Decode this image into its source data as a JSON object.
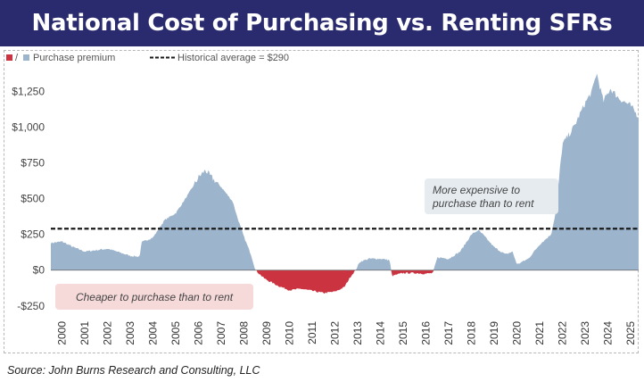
{
  "title": "National Cost of Purchasing vs. Renting SFRs",
  "source": "Source: John Burns Research and Consulting, LLC",
  "chart_data": {
    "type": "area",
    "title": "National Cost of Purchasing vs. Renting SFRs",
    "legend": {
      "placement": "top-left",
      "series_label": "Purchase premium",
      "swatch_separator": "/",
      "reference_label": "Historical average = $290"
    },
    "y_ticks": [
      {
        "value": 1250,
        "label": "$1,250"
      },
      {
        "value": 1000,
        "label": "$1,000"
      },
      {
        "value": 750,
        "label": "$750"
      },
      {
        "value": 500,
        "label": "$500"
      },
      {
        "value": 250,
        "label": "$250"
      },
      {
        "value": 0,
        "label": "$0"
      },
      {
        "value": -250,
        "label": "-$250"
      }
    ],
    "ylim": [
      -320,
      1440
    ],
    "xlim": [
      2000,
      2025.85
    ],
    "x_tick_labels": [
      "2000",
      "2001",
      "2002",
      "2003",
      "2004",
      "2005",
      "2006",
      "2007",
      "2008",
      "2009",
      "2010",
      "2011",
      "2012",
      "2013",
      "2014",
      "2015",
      "2016",
      "2017",
      "2018",
      "2019",
      "2020",
      "2021",
      "2022",
      "2023",
      "2024",
      "2025"
    ],
    "reference_line": {
      "value": 290,
      "label": "Historical average = $290"
    },
    "annotations": [
      {
        "text": "Cheaper to purchase than to rent",
        "tone": "negative"
      },
      {
        "text_lines": [
          "More expensive to",
          "purchase than to rent"
        ],
        "tone": "positive"
      }
    ],
    "colors": {
      "positive": "#9cb4cc",
      "negative": "#cc3340",
      "reference": "#1a1a1a",
      "negative_box": "#f6d9d9",
      "positive_box": "#e6ebf0"
    },
    "series": [
      {
        "name": "Purchase premium",
        "points": [
          [
            2000.0,
            190
          ],
          [
            2000.5,
            200
          ],
          [
            2001.0,
            160
          ],
          [
            2001.5,
            130
          ],
          [
            2002.0,
            140
          ],
          [
            2002.5,
            150
          ],
          [
            2003.0,
            125
          ],
          [
            2003.5,
            100
          ],
          [
            2003.9,
            95
          ],
          [
            2004.0,
            195
          ],
          [
            2004.5,
            230
          ],
          [
            2005.0,
            350
          ],
          [
            2005.5,
            400
          ],
          [
            2006.0,
            520
          ],
          [
            2006.5,
            650
          ],
          [
            2006.8,
            700
          ],
          [
            2007.0,
            660
          ],
          [
            2007.5,
            580
          ],
          [
            2008.0,
            480
          ],
          [
            2008.2,
            370
          ],
          [
            2008.5,
            230
          ],
          [
            2008.8,
            110
          ],
          [
            2009.0,
            0
          ],
          [
            2009.4,
            -60
          ],
          [
            2010.0,
            -110
          ],
          [
            2010.5,
            -140
          ],
          [
            2011.0,
            -130
          ],
          [
            2011.5,
            -145
          ],
          [
            2012.0,
            -160
          ],
          [
            2012.5,
            -150
          ],
          [
            2012.9,
            -120
          ],
          [
            2013.2,
            -40
          ],
          [
            2013.4,
            0
          ],
          [
            2013.6,
            60
          ],
          [
            2014.0,
            80
          ],
          [
            2014.5,
            80
          ],
          [
            2014.9,
            70
          ],
          [
            2015.0,
            -40
          ],
          [
            2015.5,
            -20
          ],
          [
            2016.0,
            -20
          ],
          [
            2016.5,
            -25
          ],
          [
            2016.8,
            -20
          ],
          [
            2017.0,
            90
          ],
          [
            2017.5,
            80
          ],
          [
            2018.0,
            130
          ],
          [
            2018.5,
            250
          ],
          [
            2018.8,
            280
          ],
          [
            2019.0,
            250
          ],
          [
            2019.5,
            160
          ],
          [
            2020.0,
            110
          ],
          [
            2020.3,
            130
          ],
          [
            2020.5,
            40
          ],
          [
            2021.0,
            80
          ],
          [
            2021.5,
            180
          ],
          [
            2022.0,
            250
          ],
          [
            2022.2,
            400
          ],
          [
            2022.5,
            880
          ],
          [
            2023.0,
            1000
          ],
          [
            2023.5,
            1170
          ],
          [
            2023.8,
            1250
          ],
          [
            2024.0,
            1380
          ],
          [
            2024.3,
            1180
          ],
          [
            2024.6,
            1270
          ],
          [
            2025.0,
            1200
          ],
          [
            2025.5,
            1150
          ],
          [
            2025.85,
            1070
          ]
        ]
      }
    ]
  }
}
